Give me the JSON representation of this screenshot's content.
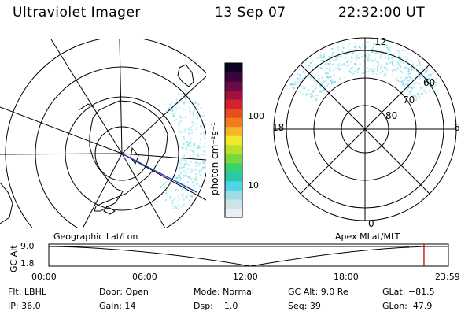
{
  "header": {
    "title": "Ultraviolet Imager",
    "date": "13 Sep 07",
    "time": "22:32:00 UT"
  },
  "colors": {
    "accent_marker": "#cc0000",
    "track_line": "#1f3fbf",
    "aurora_color": "#6fd8e8"
  },
  "colorbar": {
    "unit_label": "photon cm⁻²s⁻¹",
    "ticks": [
      {
        "label": "100",
        "value": 100
      },
      {
        "label": "10",
        "value": 10
      }
    ],
    "colors": [
      "#e9f1f3",
      "#cde3e8",
      "#9fdbe5",
      "#4fd6e6",
      "#2ac8a8",
      "#3ad26a",
      "#7ad83a",
      "#b9e02a",
      "#f2e82a",
      "#f5b52a",
      "#f27d1f",
      "#e84c1f",
      "#d5212f",
      "#a0123e",
      "#6b0b46",
      "#38043a",
      "#0c0420"
    ]
  },
  "left_map": {
    "caption": "Geographic Lat/Lon"
  },
  "right_map": {
    "caption": "Apex MLat/MLT",
    "mlt_labels": {
      "top": "12",
      "bottom": "0",
      "left": "18",
      "right": "6"
    },
    "lat_labels": [
      "60",
      "70",
      "80"
    ]
  },
  "timeline": {
    "axis_title": "GC Alt",
    "y_ticks": [
      "9.0",
      "1.8"
    ],
    "x_ticks": [
      "00:00",
      "06:00",
      "12:00",
      "18:00",
      "23:59"
    ],
    "current_time_fraction": 0.9389
  },
  "footer": {
    "rows": [
      [
        "Flt: LBHL",
        "Door: Open",
        "Mode: Normal",
        "GC Alt: 9.0 Re",
        "GLat: −81.5"
      ],
      [
        "IP: 36.0",
        "Gain: 14",
        "Dsp:    1.0",
        "Seq: 39",
        "GLon:  47.9"
      ]
    ]
  }
}
